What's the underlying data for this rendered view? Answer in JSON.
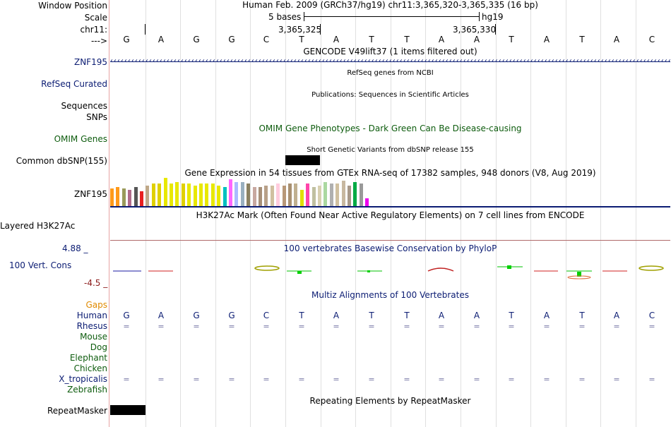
{
  "header": {
    "window_position_label": "Window Position",
    "scale_label": "Scale",
    "chrom_label": "chr11:",
    "strand_label": "--->",
    "assembly_text": "Human Feb. 2009 (GRCh37/hg19)   chr11:3,365,320-3,365,335 (16 bp)",
    "scale_text": "5 bases",
    "db_text": "hg19",
    "pos1": "3,365,325",
    "pos2": "3,365,330"
  },
  "sequence": [
    "G",
    "A",
    "G",
    "G",
    "C",
    "T",
    "A",
    "T",
    "T",
    "A",
    "A",
    "T",
    "A",
    "T",
    "A",
    "C"
  ],
  "tracks": {
    "gencode_title": "GENCODE V49lift37 (1 items filtered out)",
    "gene_label": "ZNF195",
    "refseq_title": "RefSeq genes from NCBI",
    "refseq_label": "RefSeq Curated",
    "pubs_title": "Publications: Sequences in Scientific Articles",
    "sequences_label": "Sequences",
    "snps_label": "SNPs",
    "omim_title": "OMIM Gene Phenotypes - Dark Green Can Be Disease-causing",
    "omim_label": "OMIM Genes",
    "dbsnp_title": "Short Genetic Variants from dbSNP release 155",
    "dbsnp_label": "Common dbSNP(155)",
    "gtex_title": "Gene Expression in 54 tissues from GTEx RNA-seq of 17382 samples, 948 donors (V8, Aug 2019)",
    "gtex_label": "ZNF195",
    "h3k_title": "H3K27Ac Mark (Often Found Near Active Regulatory Elements) on 7 cell lines from ENCODE",
    "h3k_label": "Layered H3K27Ac",
    "cons_title": "100 vertebrates Basewise Conservation by PhyloP",
    "cons_label": "100 Vert. Cons",
    "cons_max": "4.88 _",
    "cons_min": "-4.5 _",
    "multiz_title": "Multiz Alignments of 100 Vertebrates",
    "rmask_title": "Repeating Elements by RepeatMasker",
    "rmask_label": "RepeatMasker"
  },
  "alignment": {
    "gaps_label": "Gaps",
    "species": [
      "Human",
      "Rhesus",
      "Mouse",
      "Dog",
      "Elephant",
      "Chicken",
      "X_tropicalis",
      "Zebrafish"
    ],
    "eq_symbol": "="
  },
  "gtex_tissue_colors": [
    "#ff9a1a",
    "#ff9a1a",
    "#9a9a5a",
    "#b06a8a",
    "#555555",
    "#e82020",
    "#bfa888",
    "#e0d000",
    "#e0d000",
    "#e8e800",
    "#e8e800",
    "#e8e800",
    "#e0d000",
    "#e8e800",
    "#e8e800",
    "#e8e800",
    "#e8e800",
    "#e8e800",
    "#e8e800",
    "#00c0c0",
    "#ff66ff",
    "#aabbff",
    "#99b0c0",
    "#8a8060",
    "#c8a8a0",
    "#a89078",
    "#b8a088",
    "#d0c0a0",
    "#ffccdd",
    "#b89878",
    "#a89070",
    "#c0b090",
    "#e0e000",
    "#ff44aa",
    "#c0c0a0",
    "#d8d0b0",
    "#aad8a0",
    "#b0b0b0",
    "#d0c0a0",
    "#c8b8a0",
    "#a89888",
    "#00aa44",
    "#999999",
    "#ee00ee"
  ],
  "gtex_tissue_values": [
    24,
    26,
    24,
    22,
    26,
    20,
    28,
    30,
    30,
    38,
    30,
    32,
    30,
    30,
    28,
    30,
    30,
    30,
    28,
    26,
    36,
    32,
    32,
    30,
    26,
    26,
    28,
    28,
    30,
    28,
    30,
    30,
    22,
    30,
    26,
    28,
    32,
    30,
    30,
    34,
    28,
    32,
    30,
    10
  ]
}
